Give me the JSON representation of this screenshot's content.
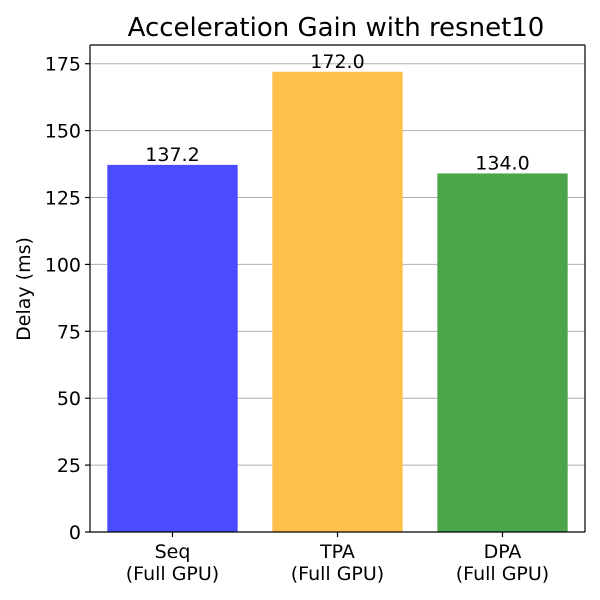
{
  "chart_data": {
    "type": "bar",
    "title": "Acceleration Gain with resnet10",
    "xlabel": "",
    "ylabel": "Delay (ms)",
    "categories": [
      [
        "Seq",
        "(Full GPU)"
      ],
      [
        "TPA",
        "(Full GPU)"
      ],
      [
        "DPA",
        "(Full GPU)"
      ]
    ],
    "values": [
      137.2,
      172.0,
      134.0
    ],
    "value_labels": [
      "137.2",
      "172.0",
      "134.0"
    ],
    "colors": [
      "#4b4bff",
      "#ffbf4b",
      "#4ba64b"
    ],
    "ylim": [
      0,
      182
    ],
    "yticks": [
      0,
      25,
      50,
      75,
      100,
      125,
      150,
      175
    ],
    "grid": true,
    "grid_axis": "y"
  }
}
